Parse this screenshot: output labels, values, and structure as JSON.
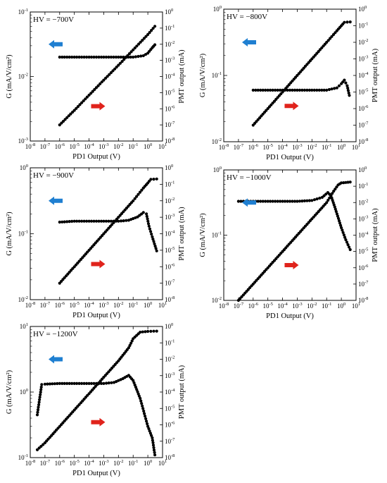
{
  "figure": {
    "x_axis_label": "PD1 Output (V)",
    "left_axis_label": "G (mA/V/cm²)",
    "right_axis_label": "PMT output (mA)",
    "colors": {
      "left_arrow": "#1f7fd1",
      "right_arrow": "#e0231c",
      "markers": "#000000"
    }
  },
  "chart_data": [
    {
      "type": "scatter",
      "panel_label": "HV = −700V",
      "xlabel": "PD1 Output (V)",
      "ylabel": "G (mA/V/cm²)",
      "y2label": "PMT output (mA)",
      "x_scale": "log",
      "y_scale": "log",
      "y2_scale": "log",
      "xlim": [
        1e-08,
        10
      ],
      "ylim": [
        0.001,
        0.1
      ],
      "y2lim": [
        1e-08,
        1
      ],
      "x_tick_labels": [
        "10-8",
        "10-7",
        "10-6",
        "10-5",
        "10-4",
        "10-3",
        "10-2",
        "10-1",
        "100",
        "101"
      ],
      "y_tick_labels": [
        "10-3",
        "10-2",
        "10-1"
      ],
      "y2_tick_labels": [
        "10-8",
        "10-7",
        "10-6",
        "10-5",
        "10-4",
        "10-3",
        "10-2",
        "10-1",
        "100"
      ],
      "series": [
        {
          "axis": "left",
          "arrow": "left",
          "points": [
            [
              1e-06,
              0.02
            ],
            [
              1e-05,
              0.02
            ],
            [
              0.0001,
              0.02
            ],
            [
              0.001,
              0.02
            ],
            [
              0.01,
              0.02
            ],
            [
              0.1,
              0.02
            ],
            [
              0.5,
              0.021
            ],
            [
              1,
              0.023
            ],
            [
              2,
              0.028
            ],
            [
              3,
              0.031
            ]
          ]
        },
        {
          "axis": "right",
          "arrow": "right",
          "points": [
            [
              1e-06,
              1e-07
            ],
            [
              1e-05,
              8e-07
            ],
            [
              0.0001,
              7e-06
            ],
            [
              0.001,
              6e-05
            ],
            [
              0.01,
              0.0005
            ],
            [
              0.1,
              0.0045
            ],
            [
              1,
              0.04
            ],
            [
              3,
              0.13
            ]
          ]
        }
      ]
    },
    {
      "type": "scatter",
      "panel_label": "HV = −800V",
      "xlabel": "PD1 Output (V)",
      "ylabel": "G (mA/V/cm²)",
      "y2label": "PMT output (mA)",
      "x_scale": "log",
      "y_scale": "log",
      "y2_scale": "log",
      "xlim": [
        1e-08,
        10
      ],
      "ylim": [
        0.01,
        1
      ],
      "y2lim": [
        1e-08,
        1
      ],
      "x_tick_labels": [
        "10-8",
        "10-7",
        "10-6",
        "10-5",
        "10-4",
        "10-3",
        "10-2",
        "10-1",
        "100",
        "101"
      ],
      "y_tick_labels": [
        "10-2",
        "10-1",
        "100"
      ],
      "y2_tick_labels": [
        "10-8",
        "10-7",
        "10-6",
        "10-5",
        "10-4",
        "10-3",
        "10-2",
        "10-1",
        "100"
      ],
      "series": [
        {
          "axis": "left",
          "arrow": "left",
          "points": [
            [
              1e-06,
              0.06
            ],
            [
              1e-05,
              0.06
            ],
            [
              0.0001,
              0.06
            ],
            [
              0.001,
              0.06
            ],
            [
              0.01,
              0.06
            ],
            [
              0.1,
              0.06
            ],
            [
              0.5,
              0.065
            ],
            [
              1,
              0.075
            ],
            [
              1.6,
              0.085
            ],
            [
              2.5,
              0.07
            ],
            [
              3.5,
              0.05
            ]
          ]
        },
        {
          "axis": "right",
          "arrow": "right",
          "points": [
            [
              1e-06,
              1e-07
            ],
            [
              1e-05,
              1e-06
            ],
            [
              0.0001,
              1e-05
            ],
            [
              0.001,
              0.0001
            ],
            [
              0.01,
              0.001
            ],
            [
              0.1,
              0.01
            ],
            [
              0.5,
              0.05
            ],
            [
              1,
              0.1
            ],
            [
              1.6,
              0.16
            ],
            [
              4,
              0.17
            ]
          ]
        }
      ]
    },
    {
      "type": "scatter",
      "panel_label": "HV = −900V",
      "xlabel": "PD1 Output (V)",
      "ylabel": "G (mA/V/cm²)",
      "y2label": "PMT output (mA)",
      "x_scale": "log",
      "y_scale": "log",
      "y2_scale": "log",
      "xlim": [
        1e-08,
        10
      ],
      "ylim": [
        0.01,
        1
      ],
      "y2lim": [
        1e-08,
        1
      ],
      "x_tick_labels": [
        "10-8",
        "10-7",
        "10-6",
        "10-5",
        "10-4",
        "10-3",
        "10-2",
        "10-1",
        "100",
        "101"
      ],
      "y_tick_labels": [
        "10-2",
        "10-1",
        "100"
      ],
      "y2_tick_labels": [
        "10-8",
        "10-7",
        "10-6",
        "10-5",
        "10-4",
        "10-3",
        "10-2",
        "10-1",
        "100"
      ],
      "series": [
        {
          "axis": "left",
          "arrow": "left",
          "points": [
            [
              1e-06,
              0.15
            ],
            [
              1e-05,
              0.155
            ],
            [
              0.0001,
              0.155
            ],
            [
              0.001,
              0.155
            ],
            [
              0.01,
              0.155
            ],
            [
              0.05,
              0.16
            ],
            [
              0.2,
              0.18
            ],
            [
              0.5,
              0.21
            ],
            [
              0.8,
              0.2
            ],
            [
              1.2,
              0.13
            ],
            [
              2,
              0.09
            ],
            [
              4,
              0.055
            ]
          ]
        },
        {
          "axis": "right",
          "arrow": "right",
          "points": [
            [
              1e-06,
              1e-07
            ],
            [
              1e-05,
              1e-06
            ],
            [
              0.0001,
              1e-05
            ],
            [
              0.001,
              0.0001
            ],
            [
              0.01,
              0.001
            ],
            [
              0.1,
              0.01
            ],
            [
              0.5,
              0.06
            ],
            [
              1,
              0.12
            ],
            [
              1.6,
              0.2
            ],
            [
              4,
              0.21
            ]
          ]
        }
      ]
    },
    {
      "type": "scatter",
      "panel_label": "HV = −1000V",
      "xlabel": "PD1 Output (V)",
      "ylabel": "G (mA/V/cm²)",
      "y2label": "PMT output (mA)",
      "x_scale": "log",
      "y_scale": "log",
      "y2_scale": "log",
      "xlim": [
        1e-08,
        10
      ],
      "ylim": [
        0.01,
        1
      ],
      "y2lim": [
        1e-08,
        1
      ],
      "x_tick_labels": [
        "10-8",
        "10-7",
        "10-6",
        "10-5",
        "10-4",
        "10-3",
        "10-2",
        "10-1",
        "100",
        "101"
      ],
      "y_tick_labels": [
        "10-2",
        "10-1",
        "100"
      ],
      "y2_tick_labels": [
        "10-8",
        "10-7",
        "10-6",
        "10-5",
        "10-4",
        "10-3",
        "10-2",
        "10-1",
        "100"
      ],
      "series": [
        {
          "axis": "left",
          "arrow": "left",
          "points": [
            [
              1e-07,
              0.33
            ],
            [
              1e-06,
              0.33
            ],
            [
              1e-05,
              0.33
            ],
            [
              0.0001,
              0.33
            ],
            [
              0.001,
              0.33
            ],
            [
              0.01,
              0.34
            ],
            [
              0.05,
              0.38
            ],
            [
              0.12,
              0.45
            ],
            [
              0.2,
              0.4
            ],
            [
              0.4,
              0.25
            ],
            [
              1,
              0.13
            ],
            [
              2,
              0.085
            ],
            [
              4,
              0.06
            ]
          ]
        },
        {
          "axis": "right",
          "arrow": "right",
          "points": [
            [
              1e-07,
              1e-08
            ],
            [
              1e-06,
              1e-07
            ],
            [
              1e-05,
              1e-06
            ],
            [
              0.0001,
              1e-05
            ],
            [
              0.001,
              0.0001
            ],
            [
              0.01,
              0.001
            ],
            [
              0.1,
              0.01
            ],
            [
              0.3,
              0.05
            ],
            [
              0.6,
              0.12
            ],
            [
              1,
              0.16
            ],
            [
              4,
              0.18
            ]
          ]
        }
      ]
    },
    {
      "type": "scatter",
      "panel_label": "HV = −1200V",
      "xlabel": "PD1 Output (V)",
      "ylabel": "G (mA/V/cm²)",
      "y2label": "PMT output (mA)",
      "x_scale": "log",
      "y_scale": "log",
      "y2_scale": "log",
      "xlim": [
        1e-08,
        10
      ],
      "ylim": [
        0.1,
        10
      ],
      "y2lim": [
        1e-08,
        1
      ],
      "x_tick_labels": [
        "10-8",
        "10-7",
        "10-6",
        "10-5",
        "10-4",
        "10-3",
        "10-2",
        "10-1",
        "100",
        "101"
      ],
      "y_tick_labels": [
        "10-1",
        "100",
        "101"
      ],
      "y2_tick_labels": [
        "10-8",
        "10-7",
        "10-6",
        "10-5",
        "10-4",
        "10-3",
        "10-2",
        "10-1",
        "100"
      ],
      "series": [
        {
          "axis": "left",
          "arrow": "left",
          "points": [
            [
              3e-08,
              0.45
            ],
            [
              6e-08,
              1.3
            ],
            [
              1e-07,
              1.32
            ],
            [
              1e-06,
              1.35
            ],
            [
              1e-05,
              1.35
            ],
            [
              0.0001,
              1.35
            ],
            [
              0.001,
              1.35
            ],
            [
              0.005,
              1.4
            ],
            [
              0.02,
              1.6
            ],
            [
              0.05,
              1.8
            ],
            [
              0.1,
              1.5
            ],
            [
              0.3,
              0.8
            ],
            [
              1,
              0.3
            ],
            [
              2,
              0.2
            ],
            [
              3,
              0.11
            ]
          ]
        },
        {
          "axis": "right",
          "arrow": "right",
          "points": [
            [
              3e-08,
              3e-08
            ],
            [
              1e-07,
              8e-08
            ],
            [
              1e-06,
              8e-07
            ],
            [
              1e-05,
              8e-06
            ],
            [
              0.0001,
              8e-05
            ],
            [
              0.001,
              0.0008
            ],
            [
              0.01,
              0.008
            ],
            [
              0.05,
              0.05
            ],
            [
              0.1,
              0.18
            ],
            [
              0.3,
              0.45
            ],
            [
              1,
              0.5
            ],
            [
              4,
              0.52
            ]
          ]
        }
      ]
    }
  ]
}
